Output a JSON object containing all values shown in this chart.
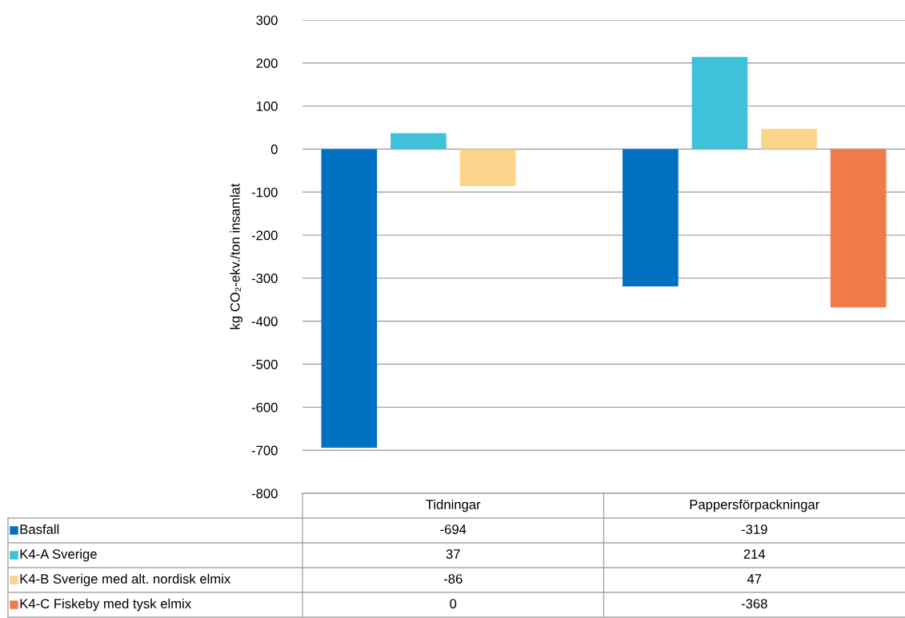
{
  "chart_data": {
    "type": "bar",
    "ylabel": "kg CO₂-ekv./ton insamlat",
    "categories": [
      "Tidningar",
      "Pappersförpackningar"
    ],
    "series": [
      {
        "name": "Basfall",
        "color": "#0070c0",
        "values": [
          -694,
          -319
        ]
      },
      {
        "name": "K4-A Sverige",
        "color": "#3fc1d9",
        "values": [
          37,
          214
        ]
      },
      {
        "name": "K4-B Sverige med alt. nordisk elmix",
        "color": "#fbd38a",
        "values": [
          -86,
          47
        ]
      },
      {
        "name": "K4-C Fiskeby med tysk elmix",
        "color": "#f07a4a",
        "values": [
          0,
          -368
        ]
      }
    ],
    "ylim": [
      -800,
      300
    ],
    "yticks": [
      -800,
      -700,
      -600,
      -500,
      -400,
      -300,
      -200,
      -100,
      0,
      100,
      200,
      300
    ],
    "grid": "y",
    "legend": "bottom",
    "data_labels": true
  }
}
